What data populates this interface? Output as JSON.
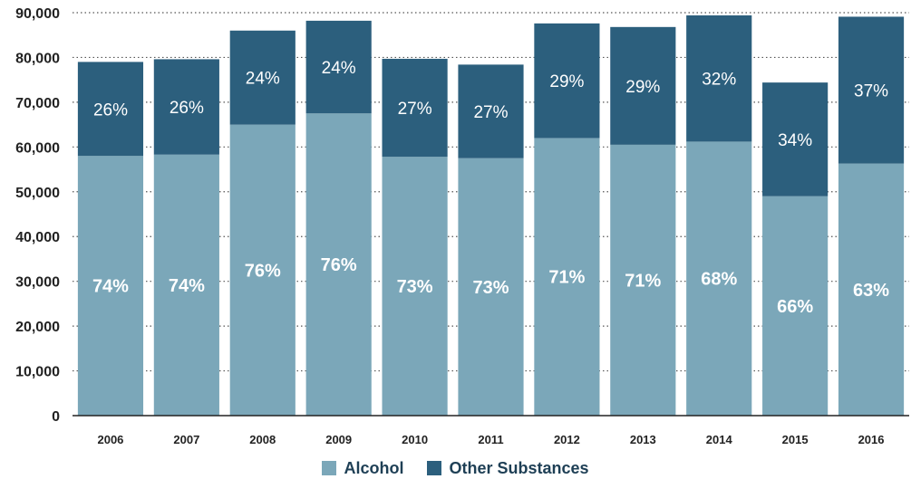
{
  "chart_data": {
    "type": "bar",
    "stacked": true,
    "categories": [
      "2006",
      "2007",
      "2008",
      "2009",
      "2010",
      "2011",
      "2012",
      "2013",
      "2014",
      "2015",
      "2016"
    ],
    "ylim": [
      0,
      90000
    ],
    "y_ticks": [
      0,
      10000,
      20000,
      30000,
      40000,
      50000,
      60000,
      70000,
      80000,
      90000
    ],
    "y_tick_labels": [
      "0",
      "10,000",
      "20,000",
      "30,000",
      "40,000",
      "50,000",
      "60,000",
      "70,000",
      "80,000",
      "90,000"
    ],
    "grid": "dotted horizontal",
    "legend_position": "bottom-center",
    "series": [
      {
        "name": "Alcohol",
        "color": "#7ba7b9",
        "values": [
          58000,
          58300,
          65000,
          67500,
          57800,
          57500,
          62000,
          60500,
          61200,
          49000,
          56300
        ],
        "labels": [
          "74%",
          "74%",
          "76%",
          "76%",
          "73%",
          "73%",
          "71%",
          "71%",
          "68%",
          "66%",
          "63%"
        ]
      },
      {
        "name": "Other Substances",
        "color": "#2c5f7d",
        "values": [
          21000,
          21300,
          21000,
          20700,
          21900,
          20900,
          25600,
          26300,
          28200,
          25400,
          32800
        ],
        "labels": [
          "26%",
          "26%",
          "24%",
          "24%",
          "27%",
          "27%",
          "29%",
          "29%",
          "32%",
          "34%",
          "37%"
        ]
      }
    ]
  }
}
